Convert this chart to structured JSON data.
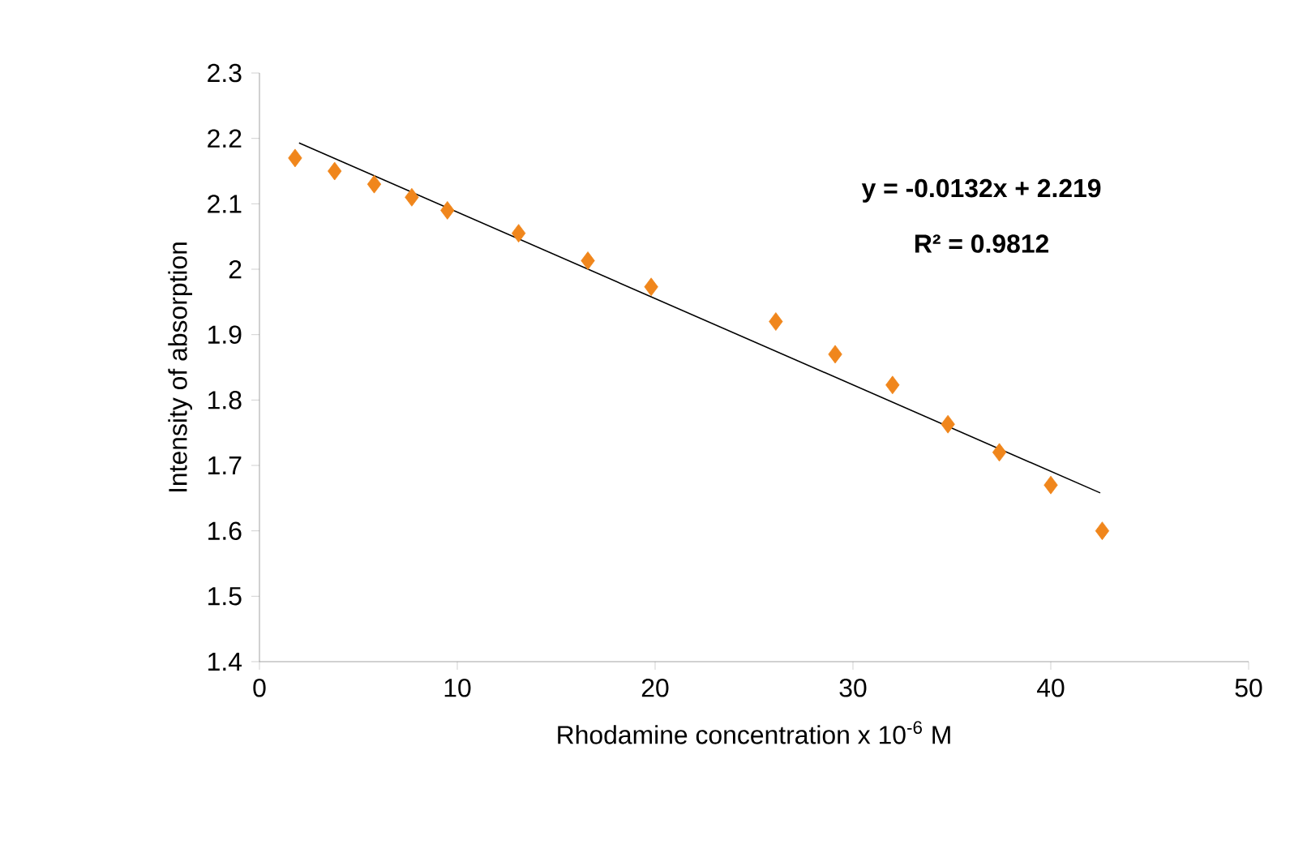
{
  "chart_data": {
    "type": "scatter",
    "xlabel": "Rhodamine concentration x 10$^{-6}$ M",
    "ylabel": "Intensity of absorption",
    "annotations": [
      "**y = -0.0132x + 2.219**",
      "**R² = 0.9812**"
    ],
    "series": [
      {
        "color": "#f0861c",
        "marker": "diamond",
        "x": [
          1.8,
          3.8,
          5.8,
          7.7,
          9.5,
          13.1,
          16.6,
          19.8,
          26.1,
          29.1,
          32.0,
          34.8,
          37.4,
          40.0,
          42.6
        ],
        "values": [
          2.17,
          2.15,
          2.13,
          2.11,
          2.09,
          2.055,
          2.013,
          1.973,
          1.92,
          1.87,
          1.823,
          1.763,
          1.72,
          1.67,
          1.6
        ]
      },
      {
        "type": "line",
        "color": "#000000",
        "marker": "none",
        "line_style": "solid",
        "x": [
          2.0,
          42.5
        ],
        "values": [
          2.193,
          1.658
        ]
      }
    ],
    "xlim": [
      0,
      50
    ],
    "xticks": [
      0,
      10,
      20,
      30,
      40,
      50
    ],
    "ylim": [
      1.4,
      2.3
    ],
    "yticks": [
      1.4,
      1.5,
      1.6,
      1.7,
      1.8,
      1.9,
      2,
      2.1,
      2.2,
      2.3
    ]
  }
}
